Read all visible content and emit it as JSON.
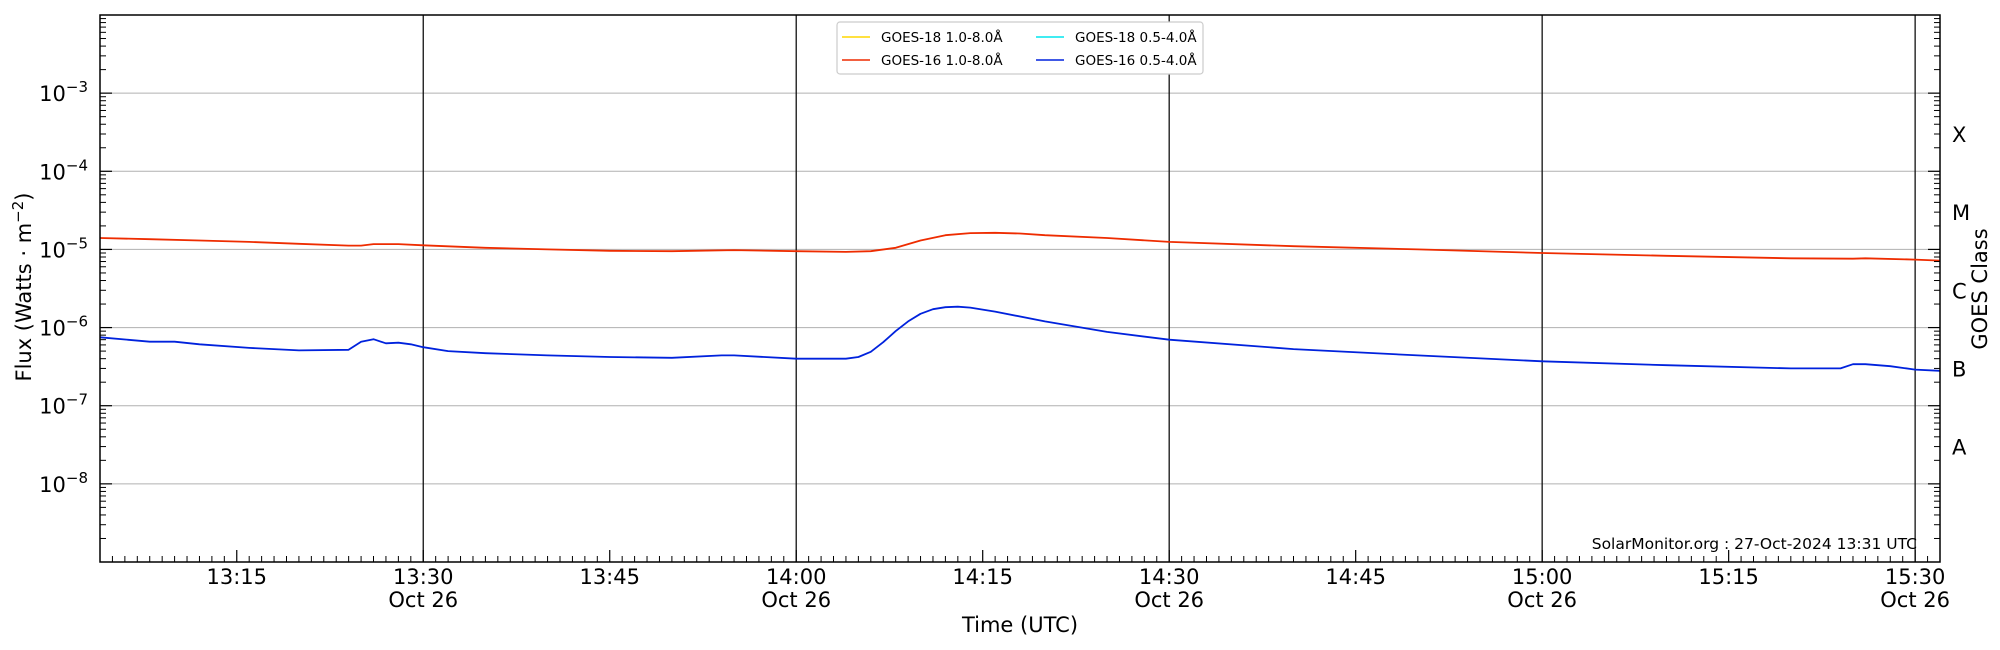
{
  "chart_data": {
    "type": "line",
    "ylabel": "Flux (Watts · m⁻²)",
    "xlabel": "Time (UTC)",
    "y2label": "GOES Class",
    "yscale": "log",
    "ylim": [
      1e-09,
      0.01
    ],
    "xlim": [
      "2024-10-26 13:04",
      "2024-10-26 15:32"
    ],
    "grid": "horizontal at y ticks",
    "credit": "SolarMonitor.org : 27-Oct-2024 13:31 UTC",
    "yticks": [
      {
        "value": 1e-08,
        "base": "10",
        "exp": "−8"
      },
      {
        "value": 1e-07,
        "base": "10",
        "exp": "−7"
      },
      {
        "value": 1e-06,
        "base": "10",
        "exp": "−6"
      },
      {
        "value": 1e-05,
        "base": "10",
        "exp": "−5"
      },
      {
        "value": 0.0001,
        "base": "10",
        "exp": "−4"
      },
      {
        "value": 0.001,
        "base": "10",
        "exp": "−3"
      }
    ],
    "xticks": [
      {
        "time": "13:15",
        "label": "13:15",
        "date": ""
      },
      {
        "time": "13:30",
        "label": "13:30",
        "date": "Oct 26"
      },
      {
        "time": "13:45",
        "label": "13:45",
        "date": ""
      },
      {
        "time": "14:00",
        "label": "14:00",
        "date": "Oct 26"
      },
      {
        "time": "14:15",
        "label": "14:15",
        "date": ""
      },
      {
        "time": "14:30",
        "label": "14:30",
        "date": "Oct 26"
      },
      {
        "time": "14:45",
        "label": "14:45",
        "date": ""
      },
      {
        "time": "15:00",
        "label": "15:00",
        "date": "Oct 26"
      },
      {
        "time": "15:15",
        "label": "15:15",
        "date": ""
      },
      {
        "time": "15:30",
        "label": "15:30",
        "date": "Oct 26"
      }
    ],
    "vlines": [
      "13:30",
      "14:00",
      "14:30",
      "15:00",
      "15:30"
    ],
    "goes_classes": [
      {
        "label": "X",
        "value": 0.0003
      },
      {
        "label": "M",
        "value": 3e-05
      },
      {
        "label": "C",
        "value": 3e-06
      },
      {
        "label": "B",
        "value": 3e-07
      },
      {
        "label": "A",
        "value": 3e-08
      }
    ],
    "legend": {
      "placement": "top-center",
      "entries": [
        {
          "name": "GOES-18 1.0-8.0Å",
          "color": "#FFD700"
        },
        {
          "name": "GOES-18 0.5-4.0Å",
          "color": "#00E5EE"
        },
        {
          "name": "GOES-16 1.0-8.0Å",
          "color": "#EE2C00"
        },
        {
          "name": "GOES-16 0.5-4.0Å",
          "color": "#0022DD"
        }
      ]
    },
    "series": [
      {
        "name": "GOES-16 1.0-8.0Å",
        "color": "#EE2C00",
        "x": [
          "13:04",
          "13:08",
          "13:12",
          "13:16",
          "13:20",
          "13:24",
          "13:25",
          "13:26",
          "13:28",
          "13:30",
          "13:35",
          "13:40",
          "13:45",
          "13:50",
          "13:55",
          "14:00",
          "14:04",
          "14:06",
          "14:08",
          "14:10",
          "14:12",
          "14:14",
          "14:16",
          "14:18",
          "14:20",
          "14:25",
          "14:30",
          "14:40",
          "14:50",
          "15:00",
          "15:10",
          "15:20",
          "15:25",
          "15:26",
          "15:30",
          "15:32"
        ],
        "y": [
          1.4e-05,
          1.35e-05,
          1.3e-05,
          1.25e-05,
          1.18e-05,
          1.12e-05,
          1.12e-05,
          1.17e-05,
          1.17e-05,
          1.13e-05,
          1.05e-05,
          1e-05,
          9.6e-06,
          9.5e-06,
          9.8e-06,
          9.5e-06,
          9.3e-06,
          9.5e-06,
          1.05e-05,
          1.3e-05,
          1.52e-05,
          1.62e-05,
          1.63e-05,
          1.6e-05,
          1.52e-05,
          1.4e-05,
          1.25e-05,
          1.1e-05,
          1e-05,
          9e-06,
          8.3e-06,
          7.7e-06,
          7.6e-06,
          7.7e-06,
          7.4e-06,
          7.2e-06
        ]
      },
      {
        "name": "GOES-16 0.5-4.0Å",
        "color": "#0022DD",
        "x": [
          "13:04",
          "13:08",
          "13:10",
          "13:12",
          "13:16",
          "13:20",
          "13:24",
          "13:25",
          "13:26",
          "13:27",
          "13:28",
          "13:29",
          "13:30",
          "13:32",
          "13:35",
          "13:40",
          "13:45",
          "13:50",
          "13:54",
          "13:55",
          "14:00",
          "14:04",
          "14:05",
          "14:06",
          "14:07",
          "14:08",
          "14:09",
          "14:10",
          "14:11",
          "14:12",
          "14:13",
          "14:14",
          "14:16",
          "14:20",
          "14:25",
          "14:30",
          "14:40",
          "14:50",
          "15:00",
          "15:10",
          "15:20",
          "15:24",
          "15:25",
          "15:26",
          "15:28",
          "15:30",
          "15:32"
        ],
        "y": [
          7.5e-07,
          6.6e-07,
          6.6e-07,
          6.1e-07,
          5.5e-07,
          5.1e-07,
          5.2e-07,
          6.6e-07,
          7.1e-07,
          6.3e-07,
          6.4e-07,
          6.1e-07,
          5.6e-07,
          5e-07,
          4.7e-07,
          4.4e-07,
          4.2e-07,
          4.1e-07,
          4.4e-07,
          4.4e-07,
          4e-07,
          4e-07,
          4.2e-07,
          4.9e-07,
          6.5e-07,
          9e-07,
          1.2e-06,
          1.5e-06,
          1.72e-06,
          1.82e-06,
          1.85e-06,
          1.8e-06,
          1.6e-06,
          1.2e-06,
          8.8e-07,
          7e-07,
          5.3e-07,
          4.4e-07,
          3.7e-07,
          3.3e-07,
          3e-07,
          3e-07,
          3.4e-07,
          3.4e-07,
          3.2e-07,
          2.9e-07,
          2.8e-07
        ]
      }
    ]
  }
}
